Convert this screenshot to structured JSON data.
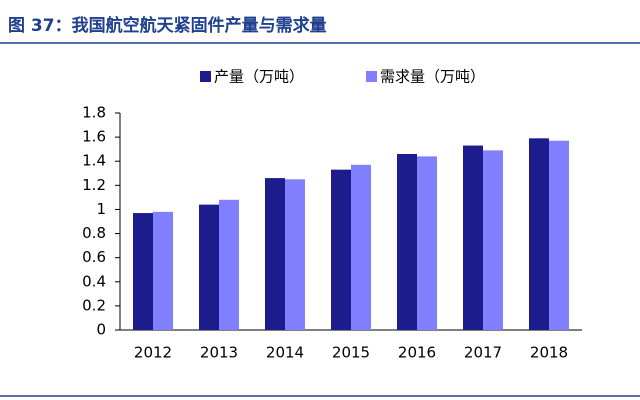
{
  "chart_data": {
    "type": "bar",
    "title": "图 37：我国航空航天紧固件产量与需求量",
    "categories": [
      "2012",
      "2013",
      "2014",
      "2015",
      "2016",
      "2017",
      "2018"
    ],
    "series": [
      {
        "name": "产量（万吨）",
        "color": "#1c1c8c",
        "values": [
          0.97,
          1.04,
          1.26,
          1.33,
          1.46,
          1.53,
          1.59
        ]
      },
      {
        "name": "需求量（万吨）",
        "color": "#8080ff",
        "values": [
          0.98,
          1.08,
          1.25,
          1.37,
          1.44,
          1.49,
          1.57
        ]
      }
    ],
    "ylim": [
      0,
      1.8
    ],
    "yticks": [
      0,
      0.2,
      0.4,
      0.6,
      0.8,
      1,
      1.2,
      1.4,
      1.6,
      1.8
    ],
    "grid": false
  }
}
